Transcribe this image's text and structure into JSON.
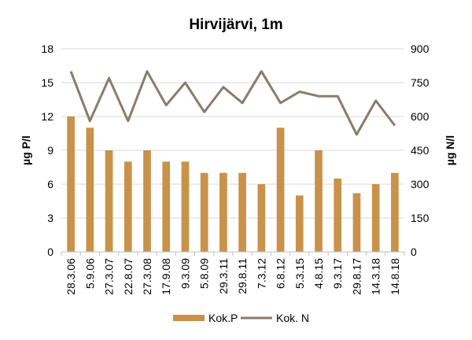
{
  "chart_data": {
    "type": "bar",
    "title": "Hirvijärvi, 1m",
    "categories": [
      "28.3.06",
      "5.9.06",
      "27.3.07",
      "22.8.07",
      "27.3.08",
      "17.9.08",
      "9.3.09",
      "5.8.09",
      "29.3.11",
      "29.8.11",
      "7.3.12",
      "6.8.12",
      "5.3.15",
      "4.8.15",
      "9.3.17",
      "29.8.17",
      "14.3.18",
      "14.8.18"
    ],
    "ylabel": "µg P/l",
    "ylabel_right": "µg N/l",
    "ylim": [
      0,
      18
    ],
    "yticks": [
      "0",
      "3",
      "6",
      "9",
      "12",
      "15",
      "18"
    ],
    "ylim_right": [
      0,
      900
    ],
    "yticks_right": [
      "0",
      "150",
      "300",
      "450",
      "600",
      "750",
      "900"
    ],
    "grid": true,
    "legend_position": "bottom",
    "series": [
      {
        "name": "Kok.P",
        "type": "bar",
        "axis": "left",
        "color": "#c8924a",
        "values": [
          12,
          11,
          9,
          8,
          9,
          8,
          8,
          7,
          7,
          7,
          6,
          11,
          5,
          9,
          6.5,
          5.2,
          6,
          7
        ]
      },
      {
        "name": "Kok. N",
        "type": "line",
        "axis": "right",
        "color": "#8c7b6b",
        "values": [
          800,
          580,
          770,
          580,
          800,
          650,
          750,
          620,
          730,
          660,
          800,
          660,
          710,
          690,
          690,
          520,
          670,
          560
        ]
      }
    ]
  }
}
